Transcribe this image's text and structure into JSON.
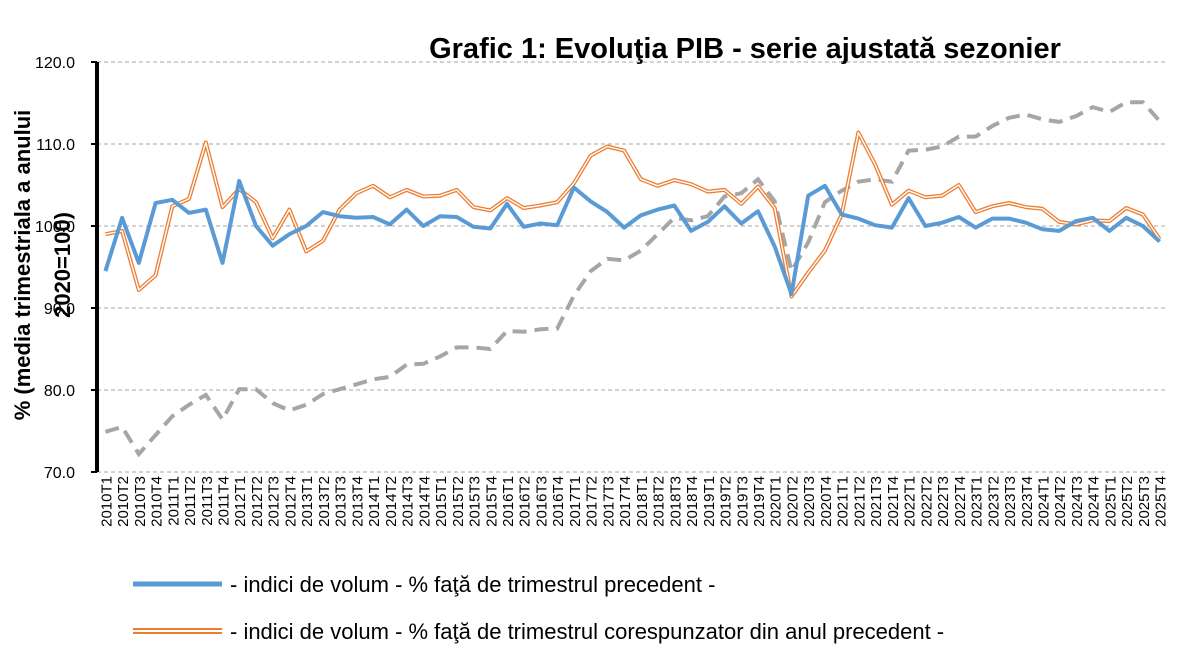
{
  "chart_data": {
    "type": "line",
    "title": "Grafic 1: Evoluţia PIB - serie ajustată sezonier",
    "y_label": [
      "% (media trimestriala a anului",
      "2020=100)"
    ],
    "categories": [
      "2010T1",
      "2010T2",
      "2010T3",
      "2010T4",
      "2011T1",
      "2011T2",
      "2011T3",
      "2011T4",
      "2012T1",
      "2012T2",
      "2012T3",
      "2012T4",
      "2013T1",
      "2013T2",
      "2013T3",
      "2013T4",
      "2014T1",
      "2014T2",
      "2014T3",
      "2014T4",
      "2015T1",
      "2015T2",
      "2015T3",
      "2015T4",
      "2016T1",
      "2016T2",
      "2016T3",
      "2016T4",
      "2017T1",
      "2017T2",
      "2017T3",
      "2017T4",
      "2018T1",
      "2018T2",
      "2018T3",
      "2018T4",
      "2019T1",
      "2019T2",
      "2019T3",
      "2019T4",
      "2020T1",
      "2020T2",
      "2020T3",
      "2020T4",
      "2021T1",
      "2021T2",
      "2021T3",
      "2021T4",
      "2022T1",
      "2022T2",
      "2022T3",
      "2022T4",
      "2023T1",
      "2023T2",
      "2023T3",
      "2023T4",
      "2024T1",
      "2024T2",
      "2024T3",
      "2024T4",
      "2025T1",
      "2025T2",
      "2025T3",
      "2025T4"
    ],
    "series": [
      {
        "name": "- indici de volum - % faţă de trimestrul precedent -",
        "color": "#5b9bd5",
        "style": "solid",
        "values": [
          94.5,
          101,
          95.5,
          102.8,
          103.2,
          101.6,
          102,
          95.5,
          105.5,
          100,
          97.6,
          99,
          100,
          101.7,
          101.2,
          101,
          101.1,
          100.2,
          102,
          100,
          101.2,
          101.1,
          99.9,
          99.7,
          102.7,
          99.9,
          100.3,
          100.1,
          104.7,
          103,
          101.7,
          99.8,
          101.3,
          102,
          102.5,
          99.4,
          100.5,
          102.4,
          100.3,
          101.8,
          97.5,
          91.7,
          103.7,
          104.9,
          101.4,
          100.9,
          100.1,
          99.8,
          103.4,
          100,
          100.4,
          101.1,
          99.8,
          100.9,
          100.9,
          100.4,
          99.6,
          99.4,
          100.6,
          101,
          99.4,
          101,
          100,
          98.1
        ]
      },
      {
        "name": "- indici de volum - % faţă de trimestrul corespunzator din anul precedent -",
        "color": "#ed7d31",
        "style": "double",
        "values": [
          99,
          99.4,
          92.2,
          94,
          102.4,
          103.3,
          110.2,
          102.3,
          104.5,
          102.9,
          98.5,
          102,
          96.9,
          98.2,
          102,
          104,
          104.9,
          103.5,
          104.4,
          103.6,
          103.7,
          104.4,
          102.3,
          101.9,
          103.4,
          102.2,
          102.5,
          102.9,
          105.2,
          108.6,
          109.7,
          109.2,
          105.7,
          104.9,
          105.6,
          105.1,
          104.2,
          104.4,
          102.7,
          104.8,
          102.2,
          91.4,
          94.3,
          97,
          101.4,
          111.4,
          107.5,
          102.6,
          104.3,
          103.5,
          103.7,
          105,
          101.7,
          102.4,
          102.8,
          102.3,
          102.1,
          100.5,
          100.2,
          100.7,
          100.6,
          102.2,
          101.4,
          98.4
        ]
      },
      {
        "color": "#a6a6a6",
        "style": "dashed",
        "values": [
          74.9,
          75.5,
          72.2,
          74.5,
          76.8,
          78.2,
          79.4,
          76.4,
          80.1,
          80.1,
          78.4,
          77.5,
          78.2,
          79.5,
          80.1,
          80.7,
          81.3,
          81.6,
          83.1,
          83.2,
          84.1,
          85.2,
          85.2,
          85,
          87.2,
          87.1,
          87.4,
          87.5,
          91.5,
          94.5,
          96,
          95.8,
          97,
          99,
          101,
          100.7,
          101.2,
          103.6,
          104,
          105.7,
          103,
          94.5,
          98,
          102.9,
          104.3,
          105.4,
          105.7,
          105.4,
          109.2,
          109.3,
          109.7,
          110.9,
          110.9,
          112.2,
          113.2,
          113.6,
          113,
          112.7,
          113.4,
          114.5,
          113.9,
          115.1,
          115.1,
          112.8
        ]
      }
    ],
    "ylim": [
      70,
      120
    ],
    "yticks": [
      {
        "value": 70,
        "label": "70.0"
      },
      {
        "value": 80,
        "label": "80.0"
      },
      {
        "value": 90,
        "label": "90.0"
      },
      {
        "value": 100,
        "label": "100.0"
      },
      {
        "value": 110,
        "label": "110.0"
      },
      {
        "value": 120,
        "label": "120.0"
      }
    ],
    "grid": true
  }
}
